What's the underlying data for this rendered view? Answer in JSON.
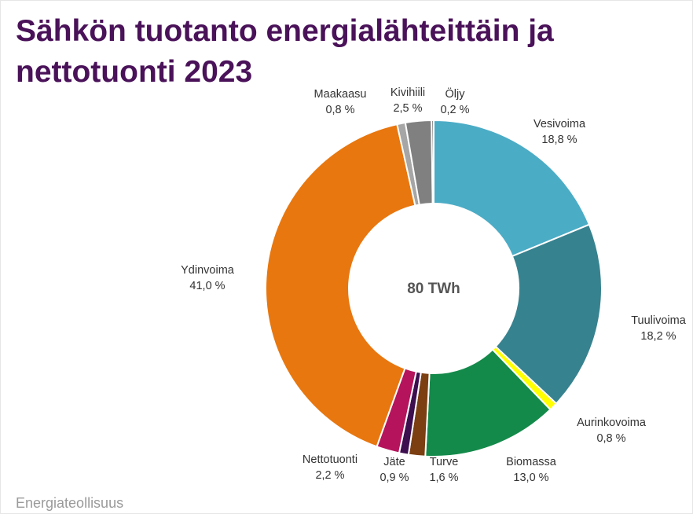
{
  "chart_data": {
    "type": "donut",
    "title_lines": [
      "Sähkön tuotanto energialähteittäin ja",
      "nettotuonti 2023"
    ],
    "center_label": "80 TWh",
    "source": "Energiateollisuus",
    "categories": [
      "Vesivoima",
      "Tuulivoima",
      "Aurinkovoima",
      "Biomassa",
      "Turve",
      "Jäte",
      "Nettotuonti",
      "Ydinvoima",
      "Maakaasu",
      "Kivihiili",
      "Öljy"
    ],
    "values": [
      18.8,
      18.2,
      0.8,
      13.0,
      1.6,
      0.9,
      2.2,
      41.0,
      0.8,
      2.5,
      0.2
    ],
    "value_labels": [
      "18,8 %",
      "18,2 %",
      "0,8 %",
      "13,0 %",
      "1,6 %",
      "0,9 %",
      "2,2 %",
      "41,0 %",
      "0,8 %",
      "2,5 %",
      "0,2 %"
    ],
    "colors": [
      "#4bacc6",
      "#37828f",
      "#ffff00",
      "#138a4a",
      "#7b3f12",
      "#3d0f4f",
      "#b5145c",
      "#e8770f",
      "#a6a6a6",
      "#808080",
      "#5a5a5a"
    ]
  }
}
